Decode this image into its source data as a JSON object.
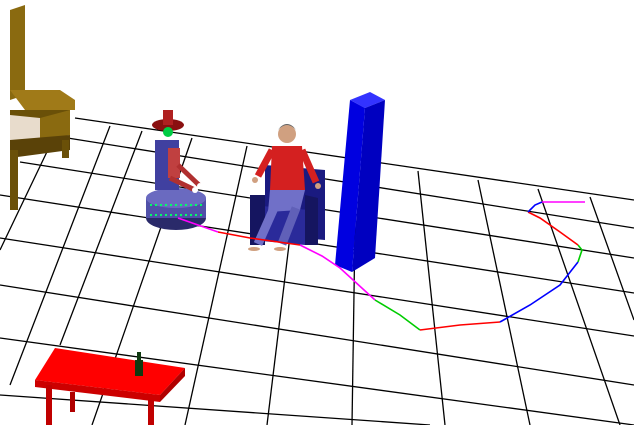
{
  "scene": {
    "background_color": "#ffffff",
    "grid_color": "#000000",
    "objects": [
      {
        "name": "floor-grid",
        "kind": "grid"
      },
      {
        "name": "bed",
        "kind": "furniture",
        "color": "#8a6a10"
      },
      {
        "name": "robot",
        "kind": "robot",
        "color": "#4a4aa0"
      },
      {
        "name": "human",
        "kind": "person",
        "color": "#d42020"
      },
      {
        "name": "armchair",
        "kind": "furniture",
        "color": "#1a1a80"
      },
      {
        "name": "wall-panel",
        "kind": "obstacle",
        "color": "#0000e0"
      },
      {
        "name": "table",
        "kind": "furniture",
        "color": "#ff0000"
      },
      {
        "name": "bottle",
        "kind": "object",
        "color": "#103a10"
      }
    ],
    "path_colors": [
      "#ff00ff",
      "#ff0000",
      "#00cc00",
      "#0000ff"
    ]
  }
}
